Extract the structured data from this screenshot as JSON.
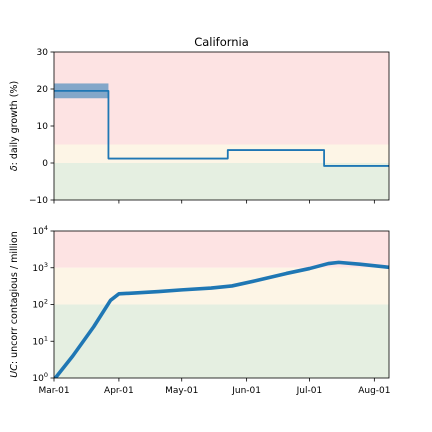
{
  "figure_title": "California",
  "colors": {
    "line": "#1f77b4",
    "band": "#1f77b4",
    "red_zone": "#fde3e3",
    "yellow_zone": "#fdf5e6",
    "green_zone": "#e5efe1"
  },
  "chart_data": [
    {
      "type": "line",
      "title": "California",
      "ylabel_italic": "δ",
      "ylabel_rest": ": daily growth (%)",
      "xlabel": "",
      "x_axis": "date",
      "xlim": [
        "2020-03-01",
        "2020-08-08"
      ],
      "ylim": [
        -10,
        30
      ],
      "yticks": [
        -10,
        0,
        10,
        20,
        30
      ],
      "ytick_labels": [
        "−10",
        "0",
        "10",
        "20",
        "30"
      ],
      "xticks": [
        "2020-03-01",
        "2020-04-01",
        "2020-05-01",
        "2020-06-01",
        "2020-07-01",
        "2020-08-01"
      ],
      "xtick_labels": [],
      "zones": [
        {
          "name": "red",
          "from": 5,
          "to": 30
        },
        {
          "name": "yellow",
          "from": 0,
          "to": 5
        },
        {
          "name": "green",
          "from": -10,
          "to": 0
        }
      ],
      "series": [
        {
          "style": "step",
          "points": [
            {
              "x": "2020-03-01",
              "y": 19.5
            },
            {
              "x": "2020-03-27",
              "y": 19.5
            },
            {
              "x": "2020-03-27",
              "y": 1.2
            },
            {
              "x": "2020-05-23",
              "y": 1.2
            },
            {
              "x": "2020-05-23",
              "y": 3.5
            },
            {
              "x": "2020-07-08",
              "y": 3.5
            },
            {
              "x": "2020-07-08",
              "y": -0.8
            },
            {
              "x": "2020-08-08",
              "y": -0.8
            }
          ]
        }
      ],
      "uncertainty_band": {
        "x_from": "2020-03-01",
        "x_to": "2020-03-27",
        "y_low": 17.5,
        "y_high": 21.5
      },
      "grid": false
    },
    {
      "type": "line",
      "title": "",
      "ylabel_italic": "UC",
      "ylabel_rest": ": uncorr contagious / million",
      "xlabel": "",
      "x_axis": "date",
      "yscale": "log",
      "xlim": [
        "2020-03-01",
        "2020-08-08"
      ],
      "ylim": [
        1,
        10000
      ],
      "yticks": [
        1,
        10,
        100,
        1000,
        10000
      ],
      "ytick_labels": [
        {
          "base": "10",
          "exp": "0"
        },
        {
          "base": "10",
          "exp": "1"
        },
        {
          "base": "10",
          "exp": "2"
        },
        {
          "base": "10",
          "exp": "3"
        },
        {
          "base": "10",
          "exp": "4"
        }
      ],
      "xticks": [
        "2020-03-01",
        "2020-04-01",
        "2020-05-01",
        "2020-06-01",
        "2020-07-01",
        "2020-08-01"
      ],
      "xtick_labels": [
        "Mar-01",
        "Apr-01",
        "May-01",
        "Jun-01",
        "Jul-01",
        "Aug-01"
      ],
      "zones": [
        {
          "name": "red",
          "from": 1000,
          "to": 10000
        },
        {
          "name": "yellow",
          "from": 100,
          "to": 1000
        },
        {
          "name": "green",
          "from": 1,
          "to": 100
        }
      ],
      "series": [
        {
          "style": "line",
          "points": [
            {
              "x": "2020-03-01",
              "y": 0.9
            },
            {
              "x": "2020-03-10",
              "y": 4
            },
            {
              "x": "2020-03-20",
              "y": 25
            },
            {
              "x": "2020-03-28",
              "y": 130
            },
            {
              "x": "2020-04-01",
              "y": 195
            },
            {
              "x": "2020-04-08",
              "y": 205
            },
            {
              "x": "2020-04-20",
              "y": 225
            },
            {
              "x": "2020-05-01",
              "y": 250
            },
            {
              "x": "2020-05-15",
              "y": 280
            },
            {
              "x": "2020-05-25",
              "y": 320
            },
            {
              "x": "2020-06-05",
              "y": 440
            },
            {
              "x": "2020-06-20",
              "y": 700
            },
            {
              "x": "2020-07-01",
              "y": 950
            },
            {
              "x": "2020-07-10",
              "y": 1300
            },
            {
              "x": "2020-07-15",
              "y": 1400
            },
            {
              "x": "2020-07-25",
              "y": 1250
            },
            {
              "x": "2020-08-08",
              "y": 1030
            }
          ]
        }
      ],
      "grid": false
    }
  ]
}
